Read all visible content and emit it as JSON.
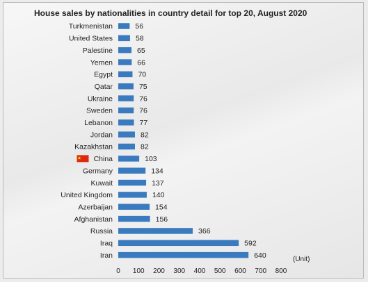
{
  "chart_data": {
    "type": "bar",
    "orientation": "horizontal",
    "title": "House sales by nationalities in country detail for top 20, August 2020",
    "xlabel": "",
    "ylabel": "",
    "unit_label": "(Unit)",
    "xlim": [
      0,
      800
    ],
    "x_ticks": [
      0,
      100,
      200,
      300,
      400,
      500,
      600,
      700,
      800
    ],
    "grid": false,
    "legend": "none",
    "bar_color": "#3a7bc0",
    "categories": [
      "Turkmenistan",
      "United States",
      "Palestine",
      "Yemen",
      "Egypt",
      "Qatar",
      "Ukraine",
      "Sweden",
      "Lebanon",
      "Jordan",
      "Kazakhstan",
      "China",
      "Germany",
      "Kuwait",
      "United Kingdom",
      "Azerbaijan",
      "Afghanistan",
      "Russia",
      "Iraq",
      "Iran"
    ],
    "values": [
      56,
      58,
      65,
      66,
      70,
      75,
      76,
      76,
      77,
      82,
      82,
      103,
      134,
      137,
      140,
      154,
      156,
      366,
      592,
      640
    ],
    "highlighted_category": {
      "name": "China",
      "icon": "china-flag-icon",
      "flag_color": "#de2910",
      "star_color": "#ffde00"
    }
  }
}
